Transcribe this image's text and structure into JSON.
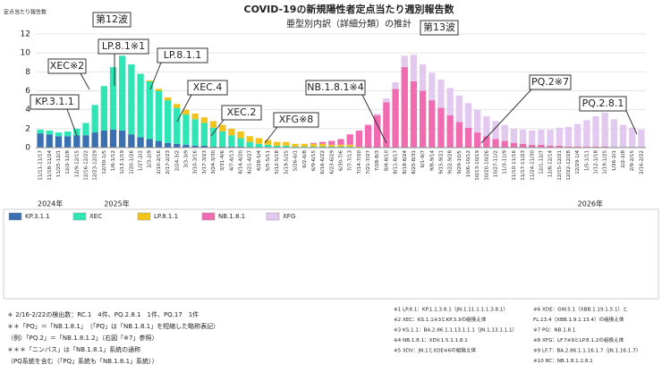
{
  "chart_data": {
    "type": "stacked_bar",
    "title": "COVID-19の新規陽性者定点当たり週別報告数",
    "subtitle": "亜型別内訳（詳細分類）の推計",
    "y_label": "定点当たり報告数",
    "ylim": [
      0,
      12
    ],
    "yticks": [
      0,
      2,
      4,
      6,
      8,
      10,
      12
    ],
    "grid": true,
    "categories": [
      "11/11-11/17",
      "11/18-11/24",
      "11/25-12/1",
      "12/2-12/8",
      "12/9-12/15",
      "12/16-12/22",
      "12/23-12/29",
      "12/30-1/5",
      "1/6-1/12",
      "1/13-1/19",
      "1/20-1/26",
      "1/27-2/2",
      "2/3-2/9",
      "2/10-2/16",
      "2/17-2/23",
      "2/24-3/2",
      "3/3-3/9",
      "3/10-3/16",
      "3/17-3/23",
      "3/24-3/30",
      "3/31-4/6",
      "4/7-4/13",
      "4/14-4/20",
      "4/21-4/27",
      "4/28-5/4",
      "5/5-5/11",
      "5/12-5/18",
      "5/19-5/25",
      "5/26-6/1",
      "6/2-6/8",
      "6/9-6/15",
      "6/16-6/22",
      "6/23-6/29",
      "6/30-7/6",
      "7/7-7/13",
      "7/14-7/20",
      "7/21-7/27",
      "7/28-8/3",
      "8/4-8/10",
      "8/11-8/17",
      "8/18-8/24",
      "8/25-8/31",
      "9/1-9/7",
      "9/8-9/14",
      "9/15-9/21",
      "9/22-9/28",
      "9/29-10/5",
      "10/6-10/12",
      "10/13-10/19",
      "10/20-10/26",
      "10/27-11/2",
      "11/3-11/9",
      "11/10-11/16",
      "11/17-11/23",
      "11/24-11/30",
      "12/1-12/7",
      "12/8-12/14",
      "12/15-12/21",
      "12/22-12/28",
      "12/29-1/4",
      "1/5-1/11",
      "1/12-1/18",
      "1/19-1/25",
      "1/26-2/1",
      "2/2-2/8",
      "2/9-2/15",
      "2/16-2/22"
    ],
    "series": [
      {
        "name": "KP.3.1.1",
        "color": "#3a6fb0",
        "values": [
          1.5,
          1.4,
          1.2,
          1.2,
          1.3,
          1.3,
          1.6,
          1.8,
          1.9,
          1.8,
          1.4,
          1.1,
          0.9,
          0.7,
          0.5,
          0.4,
          0.3,
          0.2,
          0.2,
          0.1,
          0.1,
          0.1,
          0.1,
          0,
          0,
          0,
          0,
          0,
          0,
          0,
          0,
          0,
          0,
          0,
          0,
          0,
          0,
          0,
          0,
          0,
          0,
          0,
          0,
          0,
          0,
          0,
          0,
          0,
          0,
          0,
          0,
          0,
          0,
          0,
          0,
          0,
          0,
          0,
          0,
          0,
          0,
          0,
          0,
          0,
          0,
          0,
          0
        ]
      },
      {
        "name": "XEC",
        "color": "#2ee6b5",
        "values": [
          0.4,
          0.4,
          0.4,
          0.5,
          0.7,
          1.3,
          2.9,
          4.7,
          6.6,
          7.9,
          7.4,
          6.7,
          6.1,
          5.3,
          4.5,
          3.8,
          3.2,
          2.8,
          2.4,
          2.0,
          1.6,
          1.2,
          0.9,
          0.6,
          0.4,
          0.3,
          0.2,
          0.2,
          0.1,
          0.1,
          0.1,
          0.1,
          0.1,
          0.1,
          0.1,
          0,
          0,
          0,
          0,
          0,
          0,
          0,
          0,
          0,
          0,
          0,
          0,
          0,
          0,
          0,
          0,
          0,
          0,
          0,
          0,
          0,
          0,
          0,
          0,
          0,
          0,
          0,
          0,
          0,
          0,
          0,
          0
        ]
      },
      {
        "name": "LP.8.1.1",
        "color": "#f2c318",
        "values": [
          0,
          0,
          0,
          0,
          0,
          0,
          0,
          0,
          0,
          0,
          0,
          0,
          0.1,
          0.2,
          0.3,
          0.4,
          0.5,
          0.6,
          0.6,
          0.7,
          0.7,
          0.7,
          0.7,
          0.6,
          0.6,
          0.5,
          0.4,
          0.4,
          0.3,
          0.3,
          0.3,
          0.3,
          0.2,
          0.2,
          0.2,
          0.1,
          0,
          0,
          0,
          0,
          0,
          0,
          0,
          0,
          0,
          0,
          0,
          0,
          0,
          0,
          0,
          0,
          0,
          0,
          0,
          0,
          0,
          0,
          0,
          0,
          0,
          0,
          0,
          0,
          0,
          0,
          0
        ]
      },
      {
        "name": "NB.1.8.1",
        "color": "#f06bb0",
        "values": [
          0,
          0,
          0,
          0,
          0,
          0,
          0,
          0,
          0,
          0,
          0,
          0,
          0,
          0,
          0,
          0,
          0,
          0,
          0,
          0,
          0,
          0,
          0,
          0,
          0,
          0,
          0,
          0,
          0,
          0,
          0.1,
          0.2,
          0.4,
          0.6,
          1.1,
          1.7,
          2.4,
          3.4,
          4.8,
          6.2,
          8.5,
          7.0,
          6.0,
          5.0,
          4.2,
          3.4,
          2.7,
          2.1,
          1.6,
          1.2,
          0.9,
          0.7,
          0.5,
          0.4,
          0.3,
          0.3,
          0.2,
          0.2,
          0.1,
          0.1,
          0.1,
          0.1,
          0.1,
          0,
          0,
          0,
          0
        ]
      },
      {
        "name": "XFG",
        "color": "#e3c8f0",
        "values": [
          0,
          0,
          0,
          0,
          0,
          0,
          0,
          0,
          0,
          0,
          0,
          0,
          0,
          0,
          0,
          0,
          0,
          0,
          0,
          0,
          0,
          0,
          0,
          0,
          0,
          0,
          0,
          0,
          0,
          0,
          0,
          0,
          0,
          0,
          0,
          0,
          0,
          0.2,
          0.4,
          0.7,
          1.2,
          2.8,
          2.8,
          2.9,
          3.0,
          2.9,
          2.8,
          2.6,
          2.4,
          2.1,
          1.9,
          1.7,
          1.5,
          1.5,
          1.5,
          1.6,
          1.7,
          1.9,
          2.1,
          2.4,
          2.8,
          3.2,
          3.6,
          3.0,
          2.4,
          2.1,
          1.9
        ]
      }
    ],
    "year_labels": [
      "2024年",
      "2025年",
      "2026年"
    ],
    "annotations": [
      "第12波",
      "第13波",
      "KP.3.1.1",
      "XEC※2",
      "LP.8.1※1",
      "LP.8.1.1",
      "XEC.4",
      "XEC.2",
      "XFG※8",
      "NB.1.8.1※4",
      "PQ.2※7",
      "PQ.2.8.1"
    ],
    "notes_left": [
      "＊ 2/16-2/22の検出数：RC.1　4件、PQ.2.8.1　1件、PQ.17　1件",
      "＊＊「PQ」＝「NB.1.8.1」　（「PQ」は「NB.1.8.1」を短縮した略称表記）",
      "（例）「PQ.2」＝「NB.1.8.1.2」（右図「※7」参照）",
      "＊＊＊「ニンバス」は「NB.1.8.1」系統の通称",
      "（PQ系統を含む（「PQ」系統も「NB.1.8.1」系統））"
    ],
    "notes_mid": [
      "※1 LP.8.1：KP.1.1.3.8.1（JN.1.11.1.1.1.3.8.1）",
      "※2 XEC：KS.1.1※3とKP.3.3の組換え体",
      "※3 KS.1.1：BA.2.86.1.1.13.1.1.1（JN.1.13.1.1.1）",
      "※4 NB.1.8.1：XDV.1.5.1.1.8.1",
      "※5 XDV：JN.1とXDE※6の組換え体"
    ],
    "notes_right": [
      "※6 XDE：GW.5.1（XBB.1.19.1.5.1）と",
      "FL.13.4（XBB.1.9.1.13.4）の組換え体",
      "※7 PQ：NB.1.8.1",
      "※8 XFG：LF.7※9とLP.8.1.2の組換え体",
      "※9 LF.7：BA.2.86.1.1.16.1.7（JN.1.16.1.7）",
      "※10 RC：NB.1.8.1.2.8.1"
    ]
  }
}
